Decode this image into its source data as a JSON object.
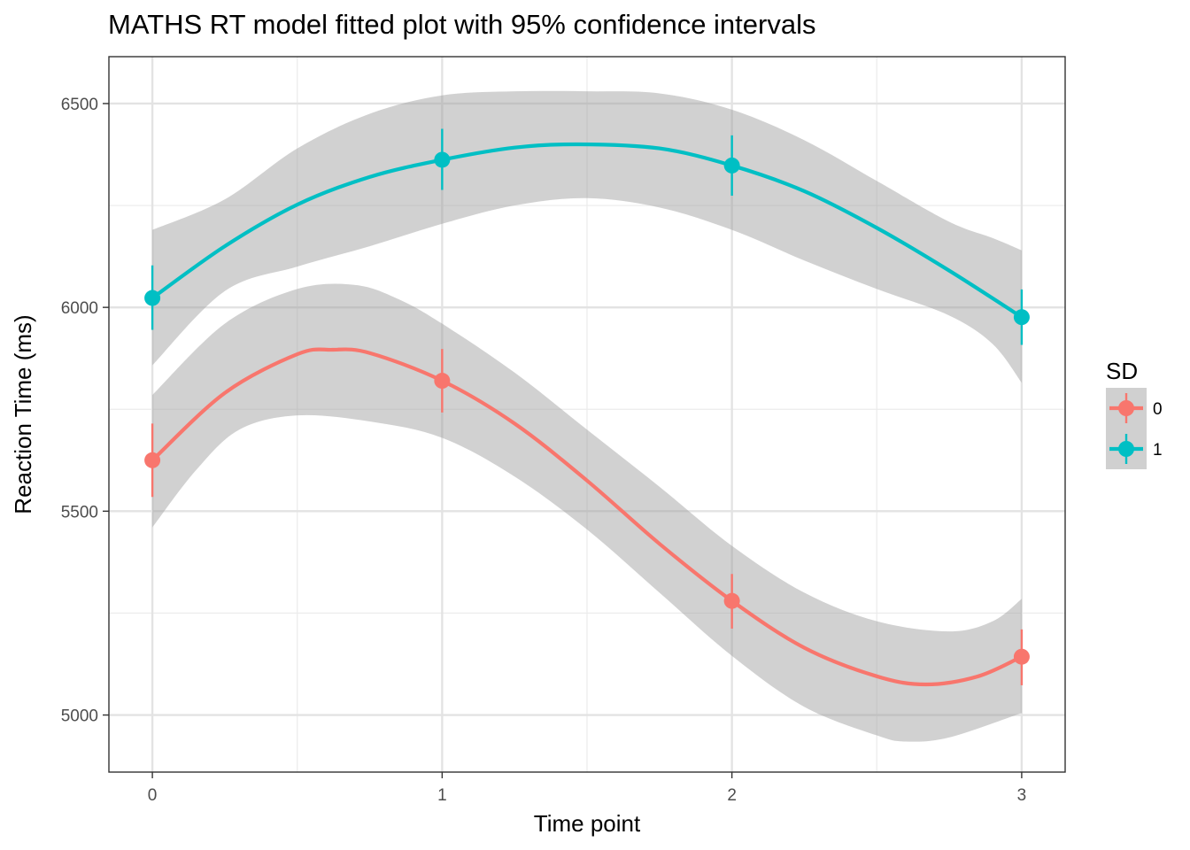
{
  "chart_data": {
    "type": "line",
    "title": "MATHS RT model fitted plot with 95% confidence intervals",
    "xlabel": "Time point",
    "ylabel": "Reaction Time (ms)",
    "x_ticks": [
      "0",
      "1",
      "2",
      "3"
    ],
    "y_ticks": [
      "5000",
      "5500",
      "6000",
      "6500"
    ],
    "xlim": [
      -0.15,
      3.15
    ],
    "ylim": [
      4860,
      6615
    ],
    "grid": true,
    "legend": {
      "title": "SD",
      "placement": "right"
    },
    "x": [
      0,
      1,
      2,
      3
    ],
    "series": [
      {
        "name": "0",
        "color": "#F8766D",
        "points": [
          5625,
          5820,
          5280,
          5143
        ],
        "error_low": [
          5535,
          5742,
          5212,
          5073
        ],
        "error_high": [
          5715,
          5898,
          5346,
          5210
        ],
        "fit": [
          [
            0,
            5625
          ],
          [
            0.25,
            5790
          ],
          [
            0.5,
            5885
          ],
          [
            0.62,
            5896
          ],
          [
            0.75,
            5888
          ],
          [
            1,
            5820
          ],
          [
            1.25,
            5715
          ],
          [
            1.5,
            5575
          ],
          [
            1.75,
            5420
          ],
          [
            2,
            5280
          ],
          [
            2.25,
            5165
          ],
          [
            2.5,
            5095
          ],
          [
            2.67,
            5075
          ],
          [
            2.85,
            5095
          ],
          [
            3,
            5143
          ]
        ],
        "ci_upper": [
          [
            0,
            5785
          ],
          [
            0.25,
            5960
          ],
          [
            0.5,
            6045
          ],
          [
            0.7,
            6055
          ],
          [
            0.85,
            6020
          ],
          [
            1,
            5960
          ],
          [
            1.25,
            5840
          ],
          [
            1.5,
            5700
          ],
          [
            1.75,
            5560
          ],
          [
            2,
            5415
          ],
          [
            2.25,
            5300
          ],
          [
            2.5,
            5230
          ],
          [
            2.75,
            5205
          ],
          [
            2.9,
            5230
          ],
          [
            3,
            5285
          ]
        ],
        "ci_lower": [
          [
            0,
            5460
          ],
          [
            0.15,
            5600
          ],
          [
            0.3,
            5700
          ],
          [
            0.5,
            5735
          ],
          [
            0.75,
            5720
          ],
          [
            1,
            5680
          ],
          [
            1.25,
            5585
          ],
          [
            1.5,
            5455
          ],
          [
            1.75,
            5300
          ],
          [
            2,
            5145
          ],
          [
            2.25,
            5020
          ],
          [
            2.5,
            4950
          ],
          [
            2.6,
            4935
          ],
          [
            2.75,
            4945
          ],
          [
            3,
            5005
          ]
        ]
      },
      {
        "name": "1",
        "color": "#00BFC4",
        "points": [
          6023,
          6362,
          6348,
          5976
        ],
        "error_low": [
          5945,
          6288,
          6274,
          5908
        ],
        "error_high": [
          6103,
          6438,
          6422,
          6044
        ],
        "fit": [
          [
            0,
            6023
          ],
          [
            0.25,
            6150
          ],
          [
            0.5,
            6252
          ],
          [
            0.75,
            6320
          ],
          [
            1,
            6362
          ],
          [
            1.25,
            6392
          ],
          [
            1.47,
            6400
          ],
          [
            1.75,
            6390
          ],
          [
            2,
            6348
          ],
          [
            2.25,
            6285
          ],
          [
            2.5,
            6195
          ],
          [
            2.75,
            6090
          ],
          [
            3,
            5976
          ]
        ],
        "ci_upper": [
          [
            0,
            6190
          ],
          [
            0.25,
            6265
          ],
          [
            0.5,
            6390
          ],
          [
            0.75,
            6475
          ],
          [
            1,
            6520
          ],
          [
            1.25,
            6530
          ],
          [
            1.5,
            6530
          ],
          [
            1.75,
            6525
          ],
          [
            2,
            6485
          ],
          [
            2.25,
            6410
          ],
          [
            2.5,
            6310
          ],
          [
            2.75,
            6210
          ],
          [
            2.9,
            6170
          ],
          [
            3,
            6140
          ]
        ],
        "ci_lower": [
          [
            0,
            5858
          ],
          [
            0.25,
            6040
          ],
          [
            0.5,
            6100
          ],
          [
            0.75,
            6150
          ],
          [
            1,
            6205
          ],
          [
            1.25,
            6250
          ],
          [
            1.5,
            6268
          ],
          [
            1.75,
            6245
          ],
          [
            2,
            6190
          ],
          [
            2.25,
            6115
          ],
          [
            2.5,
            6045
          ],
          [
            2.75,
            5980
          ],
          [
            2.9,
            5910
          ],
          [
            3,
            5815
          ]
        ]
      }
    ]
  }
}
